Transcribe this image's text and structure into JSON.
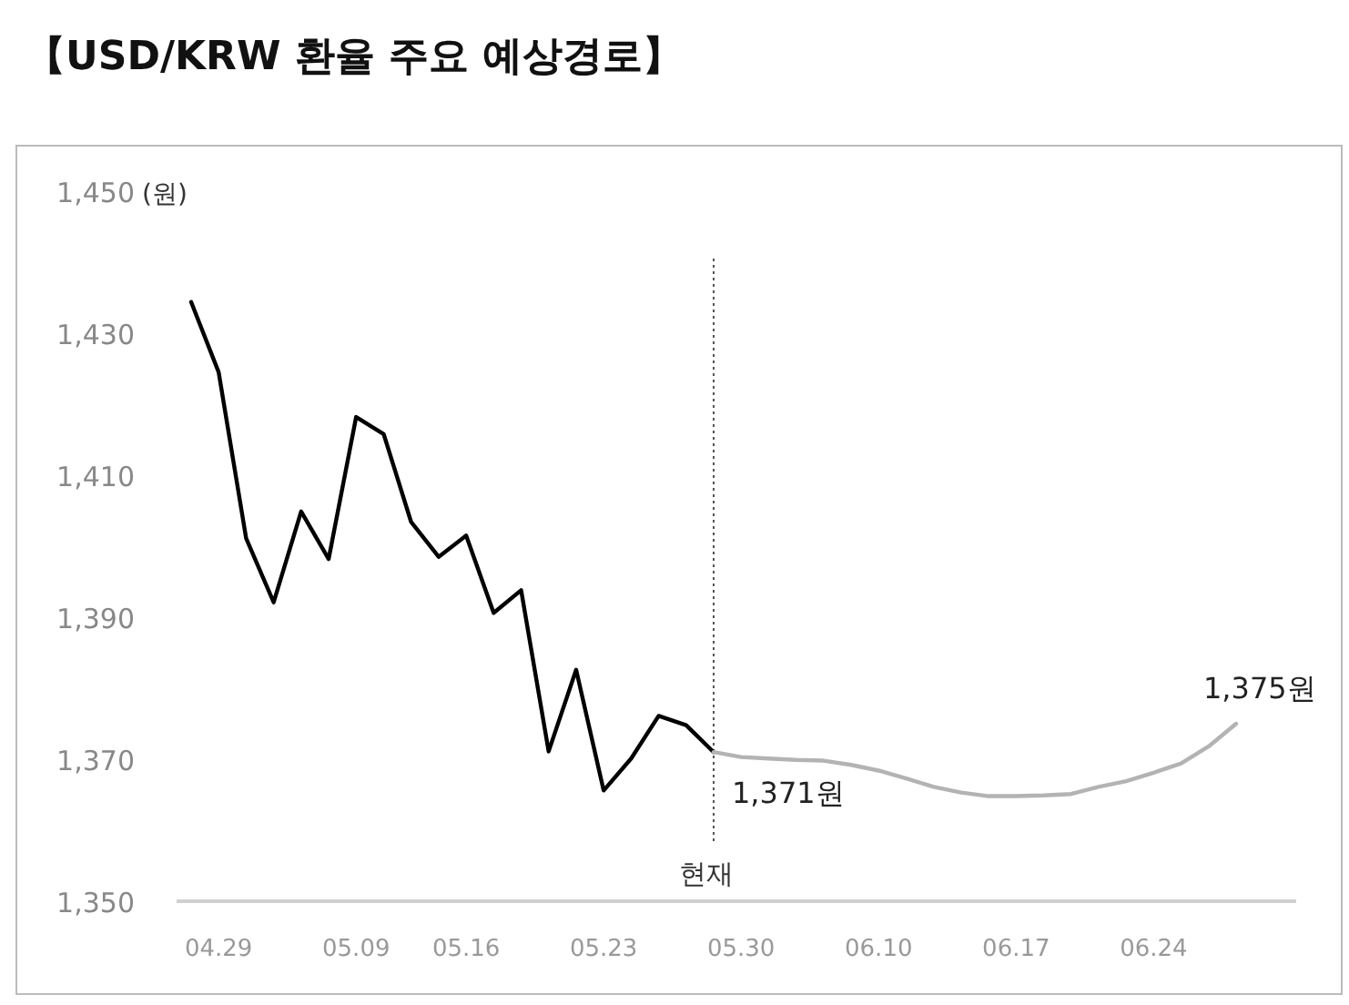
{
  "chart_data": {
    "type": "line",
    "title": "【USD/KRW 환율 주요 예상경로】",
    "ylabel": "(원)",
    "categories": [
      null,
      "04.29",
      null,
      null,
      null,
      null,
      "05.09",
      null,
      null,
      null,
      "05.16",
      null,
      null,
      null,
      null,
      "05.23",
      null,
      null,
      null,
      null,
      "05.30",
      null,
      null,
      null,
      null,
      "06.10",
      null,
      null,
      null,
      null,
      "06.17",
      null,
      null,
      null,
      null,
      "06.24",
      null,
      null,
      null
    ],
    "series": [
      {
        "color": "#000000",
        "values": [
          1434.4,
          1424.5,
          1401.1,
          1392.1,
          1404.9,
          1398.2,
          1418.2,
          1415.8,
          1403.4,
          1398.5,
          1401.5,
          1390.6,
          1393.8,
          1371.1,
          1382.6,
          1365.6,
          1370.1,
          1376.1,
          1374.8,
          1371,
          null,
          null,
          null,
          null,
          null,
          null,
          null,
          null,
          null,
          null,
          null,
          null,
          null,
          null,
          null,
          null,
          null,
          null,
          null
        ]
      },
      {
        "color": "#b3b3b3",
        "values": [
          null,
          null,
          null,
          null,
          null,
          null,
          null,
          null,
          null,
          null,
          null,
          null,
          null,
          null,
          null,
          null,
          null,
          null,
          null,
          1371,
          1370.3,
          1370.1,
          1369.9,
          1369.8,
          1369.2,
          1368.4,
          1367.3,
          1366.1,
          1365.3,
          1364.8,
          1364.8,
          1364.9,
          1365.1,
          1366.1,
          1366.9,
          1368.1,
          1369.4,
          1371.8,
          1375
        ]
      }
    ],
    "ylim": [
      1350,
      1450
    ],
    "yticks": [
      {
        "value": 1350,
        "label": "1,350"
      },
      {
        "value": 1370,
        "label": "1,370"
      },
      {
        "value": 1390,
        "label": "1,390"
      },
      {
        "value": 1410,
        "label": "1,410"
      },
      {
        "value": 1430,
        "label": "1,430"
      },
      {
        "value": 1450,
        "label": "1,450"
      }
    ],
    "annotations": [
      "현재",
      "1,371원",
      "1,375원"
    ],
    "marker": "none",
    "line_style": "solid"
  }
}
